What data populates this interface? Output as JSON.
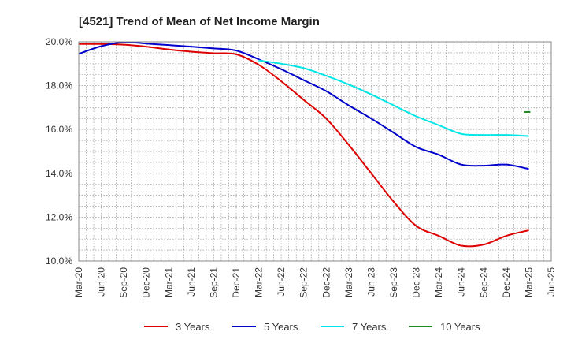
{
  "chart_data": {
    "type": "line",
    "title": "[4521]  Trend of Mean of Net Income Margin",
    "xlabel": "",
    "ylabel": "",
    "ylim": [
      10.0,
      20.0
    ],
    "yticks": [
      "10.0%",
      "12.0%",
      "14.0%",
      "16.0%",
      "18.0%",
      "20.0%"
    ],
    "ytick_values": [
      10,
      12,
      14,
      16,
      18,
      20
    ],
    "xticks": [
      "Mar-20",
      "Jun-20",
      "Sep-20",
      "Dec-20",
      "Mar-21",
      "Jun-21",
      "Sep-21",
      "Dec-21",
      "Mar-22",
      "Jun-22",
      "Sep-22",
      "Dec-22",
      "Mar-23",
      "Jun-23",
      "Sep-23",
      "Dec-23",
      "Mar-24",
      "Jun-24",
      "Sep-24",
      "Dec-24",
      "Mar-25",
      "Jun-25"
    ],
    "grid": true,
    "legend_position": "bottom",
    "series": [
      {
        "name": "3 Years",
        "color": "#dd0000",
        "points": [
          [
            "Mar-20",
            19.9
          ],
          [
            "Jun-20",
            19.9
          ],
          [
            "Sep-20",
            19.87
          ],
          [
            "Dec-20",
            19.78
          ],
          [
            "Mar-21",
            19.65
          ],
          [
            "Jun-21",
            19.55
          ],
          [
            "Sep-21",
            19.48
          ],
          [
            "Dec-21",
            19.43
          ],
          [
            "Mar-22",
            18.95
          ],
          [
            "Jun-22",
            18.2
          ],
          [
            "Sep-22",
            17.35
          ],
          [
            "Dec-22",
            16.5
          ],
          [
            "Mar-23",
            15.3
          ],
          [
            "Jun-23",
            14.0
          ],
          [
            "Sep-23",
            12.7
          ],
          [
            "Dec-23",
            11.6
          ],
          [
            "Mar-24",
            11.15
          ],
          [
            "Jun-24",
            10.7
          ],
          [
            "Sep-24",
            10.75
          ],
          [
            "Dec-24",
            11.15
          ],
          [
            "Mar-25",
            11.4
          ]
        ]
      },
      {
        "name": "5 Years",
        "color": "#0000cc",
        "points": [
          [
            "Mar-20",
            19.45
          ],
          [
            "Jun-20",
            19.8
          ],
          [
            "Sep-20",
            19.98
          ],
          [
            "Dec-20",
            19.92
          ],
          [
            "Mar-21",
            19.85
          ],
          [
            "Jun-21",
            19.78
          ],
          [
            "Sep-21",
            19.7
          ],
          [
            "Dec-21",
            19.6
          ],
          [
            "Mar-22",
            19.2
          ],
          [
            "Jun-22",
            18.75
          ],
          [
            "Sep-22",
            18.25
          ],
          [
            "Dec-22",
            17.75
          ],
          [
            "Mar-23",
            17.1
          ],
          [
            "Jun-23",
            16.5
          ],
          [
            "Sep-23",
            15.85
          ],
          [
            "Dec-23",
            15.2
          ],
          [
            "Mar-24",
            14.85
          ],
          [
            "Jun-24",
            14.4
          ],
          [
            "Sep-24",
            14.35
          ],
          [
            "Dec-24",
            14.4
          ],
          [
            "Mar-25",
            14.2
          ]
        ]
      },
      {
        "name": "7 Years",
        "color": "#00e5e5",
        "points": [
          [
            "Mar-22",
            19.15
          ],
          [
            "Jun-22",
            19.0
          ],
          [
            "Sep-22",
            18.8
          ],
          [
            "Dec-22",
            18.45
          ],
          [
            "Mar-23",
            18.05
          ],
          [
            "Jun-23",
            17.6
          ],
          [
            "Sep-23",
            17.1
          ],
          [
            "Dec-23",
            16.6
          ],
          [
            "Mar-24",
            16.2
          ],
          [
            "Jun-24",
            15.8
          ],
          [
            "Sep-24",
            15.75
          ],
          [
            "Dec-24",
            15.75
          ],
          [
            "Mar-25",
            15.7
          ]
        ]
      },
      {
        "name": "10 Years",
        "color": "#228822",
        "points": [
          [
            "Mar-25",
            16.8
          ]
        ]
      }
    ]
  }
}
